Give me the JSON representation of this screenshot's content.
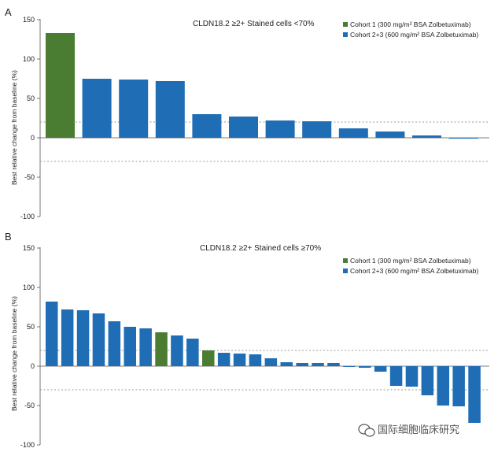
{
  "chart_data": [
    {
      "type": "bar",
      "panel": "A",
      "title": "CLDN18.2 ≥2+ Stained cells <70%",
      "ylabel": "Best relative change from baseline (%)",
      "ylim": [
        -100,
        150
      ],
      "yticks": [
        "150",
        "100",
        "50",
        "0",
        "-50",
        "-100"
      ],
      "reference_lines": [
        20,
        -30
      ],
      "legend": [
        {
          "name": "Cohort 1 (300 mg/m² BSA Zolbetuximab)",
          "color": "#4a7c31"
        },
        {
          "name": "Cohort 2+3 (600 mg/m² BSA Zolbetuximab)",
          "color": "#1f6db5"
        }
      ],
      "values": [
        133,
        75,
        74,
        72,
        30,
        27,
        22,
        21,
        12,
        8,
        3,
        -1
      ],
      "cohort": [
        1,
        2,
        2,
        2,
        2,
        2,
        2,
        2,
        2,
        2,
        2,
        2
      ]
    },
    {
      "type": "bar",
      "panel": "B",
      "title": "CLDN18.2 ≥2+ Stained cells ≥70%",
      "ylabel": "Best relative change from baseline (%)",
      "ylim": [
        -100,
        150
      ],
      "yticks": [
        "150",
        "100",
        "50",
        "0",
        "-50",
        "-100"
      ],
      "reference_lines": [
        20,
        -30
      ],
      "legend": [
        {
          "name": "Cohort 1 (300 mg/m² BSA Zolbetuximab)",
          "color": "#4a7c31"
        },
        {
          "name": "Cohort 2+3 (600 mg/m² BSA Zolbetuximab)",
          "color": "#1f6db5"
        }
      ],
      "values": [
        82,
        72,
        71,
        67,
        57,
        50,
        48,
        43,
        39,
        35,
        20,
        17,
        16,
        15,
        10,
        5,
        4,
        4,
        4,
        0,
        -2,
        -7,
        -25,
        -26,
        -37,
        -50,
        -51,
        -72
      ],
      "cohort": [
        2,
        2,
        2,
        2,
        2,
        2,
        2,
        1,
        2,
        2,
        1,
        2,
        2,
        2,
        2,
        2,
        2,
        2,
        2,
        2,
        2,
        2,
        2,
        2,
        2,
        2,
        2,
        2
      ]
    }
  ],
  "watermark": "国际细胞临床研究",
  "watermark_icon": "wechat-icon"
}
